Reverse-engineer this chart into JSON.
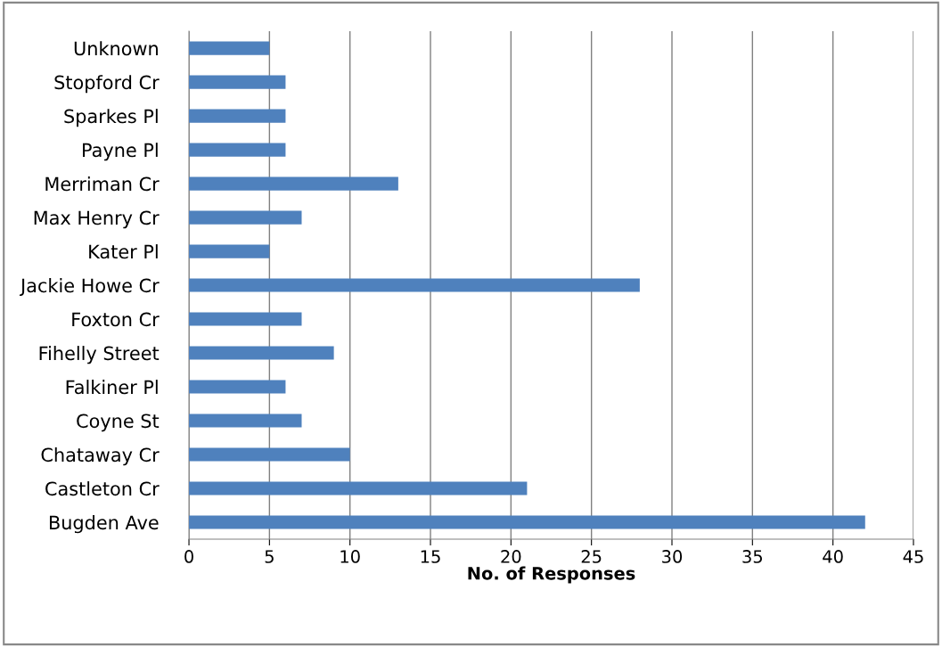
{
  "chart_data": {
    "type": "bar",
    "orientation": "horizontal",
    "xlabel": "No. of Responses",
    "categories": [
      "Unknown",
      "Stopford Cr",
      "Sparkes Pl",
      "Payne Pl",
      "Merriman Cr",
      "Max Henry Cr",
      "Kater Pl",
      "Jackie Howe Cr",
      "Foxton Cr",
      "Fihelly Street",
      "Falkiner Pl",
      "Coyne St",
      "Chataway Cr",
      "Castleton Cr",
      "Bugden Ave"
    ],
    "values": [
      5,
      6,
      6,
      6,
      13,
      7,
      5,
      28,
      7,
      9,
      6,
      7,
      10,
      21,
      42
    ],
    "color": "#4f81bd",
    "xlim": [
      0,
      45
    ],
    "xticks": [
      0,
      5,
      10,
      15,
      20,
      25,
      30,
      35,
      40,
      45
    ],
    "grid": "x"
  }
}
